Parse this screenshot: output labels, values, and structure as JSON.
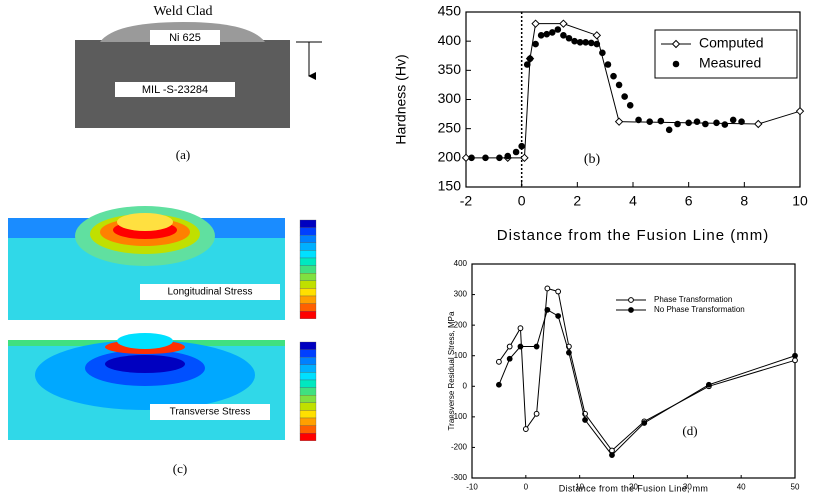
{
  "chart_data": [
    {
      "type": "line",
      "panel_label": "(b)",
      "x_label": "Distance from the Fusion Line (mm)",
      "y_label": "Hardness (Hv)",
      "xlim": [
        -2,
        10
      ],
      "xticks": [
        -2,
        0,
        2,
        4,
        6,
        8,
        10
      ],
      "ylim": [
        150,
        450
      ],
      "yticks": [
        150,
        200,
        250,
        300,
        350,
        400,
        450
      ],
      "vline": 0,
      "legend": "upper right",
      "series": [
        {
          "name": "Computed",
          "color": "#000000",
          "style": "line+markers",
          "marker": "open-diamond",
          "x": [
            -2,
            -0.5,
            0.1,
            0.3,
            0.5,
            1.5,
            2.7,
            3.5,
            8.5,
            10
          ],
          "values": [
            200,
            200,
            200,
            370,
            430,
            430,
            410,
            262,
            258,
            280
          ]
        },
        {
          "name": "Measured",
          "color": "#000000",
          "style": "markers",
          "marker": "filled-circle",
          "x": [
            -1.8,
            -1.3,
            -0.8,
            -0.5,
            -0.2,
            0,
            0.2,
            0.3,
            0.5,
            0.7,
            0.9,
            1.1,
            1.3,
            1.5,
            1.7,
            1.9,
            2.1,
            2.3,
            2.5,
            2.7,
            2.9,
            3.1,
            3.3,
            3.5,
            3.7,
            3.9,
            4.2,
            4.6,
            5,
            5.3,
            5.6,
            6,
            6.3,
            6.6,
            7,
            7.3,
            7.6,
            7.9
          ],
          "values": [
            200,
            200,
            200,
            203,
            210,
            220,
            360,
            370,
            395,
            410,
            412,
            415,
            420,
            410,
            405,
            400,
            398,
            398,
            397,
            395,
            380,
            360,
            340,
            325,
            305,
            290,
            265,
            262,
            263,
            248,
            258,
            260,
            262,
            258,
            260,
            257,
            265,
            262
          ]
        }
      ]
    },
    {
      "type": "line",
      "panel_label": "(d)",
      "x_label": "Distance from the Fusion Line, mm",
      "y_label": "Transverse Residual Stress, MPa",
      "xlim": [
        -10,
        50
      ],
      "xticks": [
        -10,
        0,
        10,
        20,
        30,
        40,
        50
      ],
      "ylim": [
        -300,
        400
      ],
      "yticks": [
        -300,
        -200,
        -100,
        0,
        100,
        200,
        300,
        400
      ],
      "legend": "upper right",
      "series": [
        {
          "name": "Phase Transformation",
          "color": "#000000",
          "style": "line+markers",
          "marker": "open-circle",
          "x": [
            -5,
            -3,
            -1,
            0,
            2,
            4,
            6,
            8,
            11,
            16,
            22,
            34,
            50
          ],
          "values": [
            80,
            130,
            190,
            -140,
            -90,
            320,
            310,
            130,
            -90,
            -210,
            -115,
            0,
            85
          ]
        },
        {
          "name": "No Phase Transformation",
          "color": "#000000",
          "style": "line+markers",
          "marker": "filled-circle",
          "x": [
            -5,
            -3,
            -1,
            2,
            4,
            6,
            8,
            11,
            16,
            22,
            34,
            50
          ],
          "values": [
            5,
            90,
            130,
            130,
            250,
            230,
            110,
            -110,
            -225,
            -120,
            5,
            100
          ]
        }
      ]
    }
  ],
  "figure_a": {
    "title": "Weld Clad",
    "clad": "Ni 625",
    "base": "MIL -S-23284",
    "panel_label": "(a)"
  },
  "figure_c": {
    "top": "Longitudinal Stress",
    "bottom": "Transverse Stress",
    "panel_label": "(c)"
  }
}
